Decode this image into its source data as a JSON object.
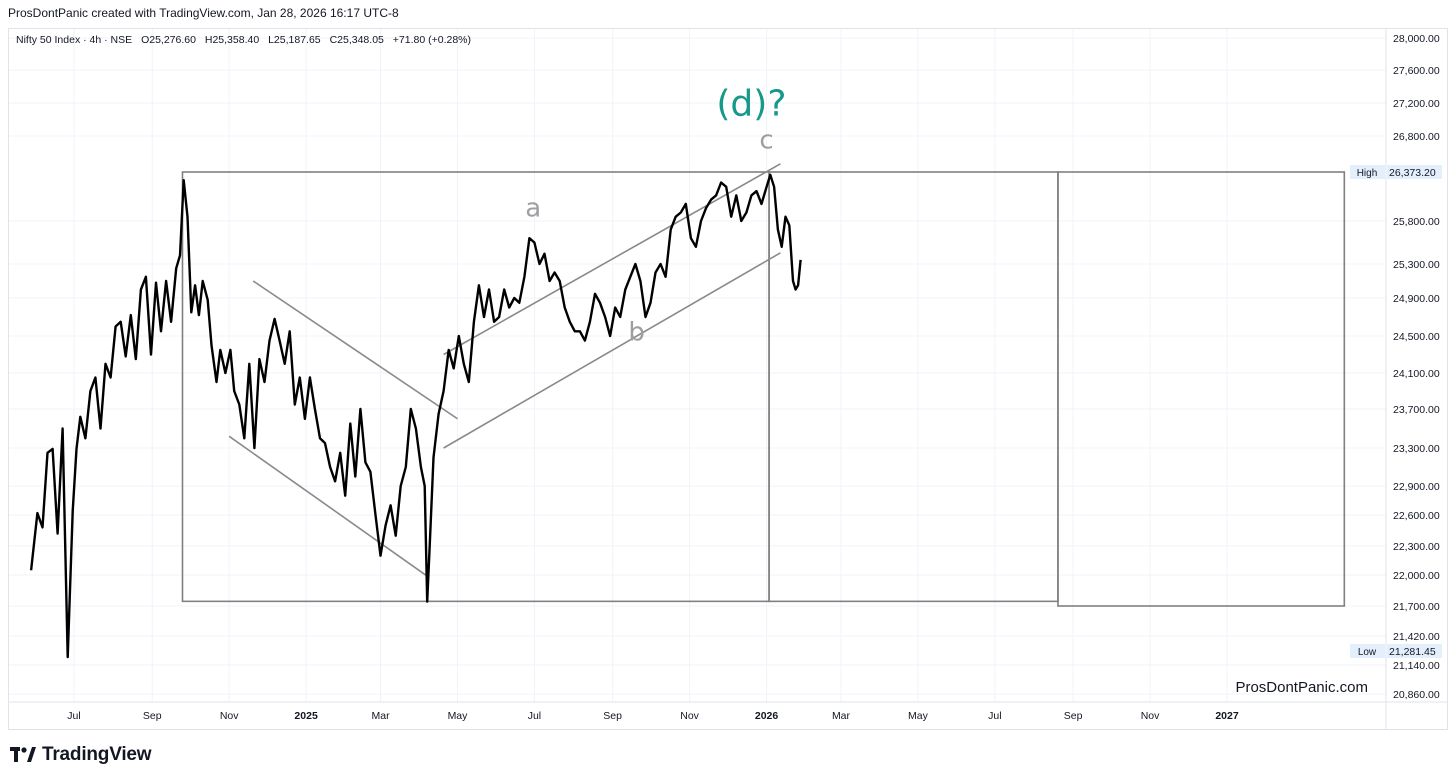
{
  "header": {
    "credit": "ProsDontPanic created with TradingView.com, Jan 28, 2026 16:17 UTC-8"
  },
  "legend": {
    "symbol": "Nifty 50 Index · 4h · NSE",
    "open": "O25,276.60",
    "high": "H25,358.40",
    "low": "L25,187.65",
    "close": "C25,348.05",
    "change": "+71.80 (+0.28%)"
  },
  "footer": {
    "brand": "TradingView",
    "watermark": "ProsDontPanic.com"
  },
  "colors": {
    "price": "#000000",
    "grid": "#f0f3fa",
    "box": "#808080",
    "annotation_teal": "#15998a",
    "wave_label": "#9e9e9e",
    "marker_bg": "#e3effd"
  },
  "chart_data": {
    "type": "line",
    "series": [
      {
        "values": [
          [
            "2024-05-28",
            22050
          ],
          [
            "2024-06-02",
            22620
          ],
          [
            "2024-06-06",
            22480
          ],
          [
            "2024-06-10",
            23250
          ],
          [
            "2024-06-14",
            23290
          ],
          [
            "2024-06-18",
            22420
          ],
          [
            "2024-06-22",
            23500
          ],
          [
            "2024-06-26",
            21220
          ],
          [
            "2024-06-30",
            22640
          ],
          [
            "2024-07-03",
            23290
          ],
          [
            "2024-07-06",
            23620
          ],
          [
            "2024-07-10",
            23400
          ],
          [
            "2024-07-14",
            23900
          ],
          [
            "2024-07-18",
            24050
          ],
          [
            "2024-07-22",
            23500
          ],
          [
            "2024-07-26",
            24200
          ],
          [
            "2024-07-30",
            24050
          ],
          [
            "2024-08-03",
            24600
          ],
          [
            "2024-08-07",
            24650
          ],
          [
            "2024-08-11",
            24280
          ],
          [
            "2024-08-15",
            24720
          ],
          [
            "2024-08-19",
            24250
          ],
          [
            "2024-08-23",
            25000
          ],
          [
            "2024-08-27",
            25150
          ],
          [
            "2024-08-31",
            24300
          ],
          [
            "2024-09-04",
            25080
          ],
          [
            "2024-09-08",
            24550
          ],
          [
            "2024-09-12",
            25100
          ],
          [
            "2024-09-16",
            24650
          ],
          [
            "2024-09-20",
            25250
          ],
          [
            "2024-09-23",
            25400
          ],
          [
            "2024-09-26",
            26277
          ],
          [
            "2024-09-29",
            25850
          ],
          [
            "2024-10-02",
            24750
          ],
          [
            "2024-10-05",
            25050
          ],
          [
            "2024-10-08",
            24720
          ],
          [
            "2024-10-11",
            25100
          ],
          [
            "2024-10-15",
            24880
          ],
          [
            "2024-10-18",
            24400
          ],
          [
            "2024-10-22",
            24000
          ],
          [
            "2024-10-25",
            24350
          ],
          [
            "2024-10-29",
            24100
          ],
          [
            "2024-11-02",
            24350
          ],
          [
            "2024-11-05",
            23900
          ],
          [
            "2024-11-09",
            23750
          ],
          [
            "2024-11-13",
            23400
          ],
          [
            "2024-11-17",
            24200
          ],
          [
            "2024-11-21",
            23300
          ],
          [
            "2024-11-25",
            24250
          ],
          [
            "2024-11-29",
            24000
          ],
          [
            "2024-12-03",
            24450
          ],
          [
            "2024-12-07",
            24680
          ],
          [
            "2024-12-11",
            24450
          ],
          [
            "2024-12-15",
            24200
          ],
          [
            "2024-12-19",
            24550
          ],
          [
            "2024-12-23",
            23750
          ],
          [
            "2024-12-27",
            24050
          ],
          [
            "2024-12-31",
            23600
          ],
          [
            "2025-01-04",
            24050
          ],
          [
            "2025-01-08",
            23700
          ],
          [
            "2025-01-12",
            23400
          ],
          [
            "2025-01-16",
            23350
          ],
          [
            "2025-01-20",
            23100
          ],
          [
            "2025-01-24",
            22950
          ],
          [
            "2025-01-28",
            23250
          ],
          [
            "2025-02-01",
            22800
          ],
          [
            "2025-02-05",
            23550
          ],
          [
            "2025-02-09",
            23000
          ],
          [
            "2025-02-13",
            23700
          ],
          [
            "2025-02-17",
            23150
          ],
          [
            "2025-02-21",
            23050
          ],
          [
            "2025-02-25",
            22600
          ],
          [
            "2025-03-01",
            22200
          ],
          [
            "2025-03-05",
            22500
          ],
          [
            "2025-03-09",
            22700
          ],
          [
            "2025-03-13",
            22400
          ],
          [
            "2025-03-17",
            22900
          ],
          [
            "2025-03-21",
            23100
          ],
          [
            "2025-03-25",
            23700
          ],
          [
            "2025-03-29",
            23500
          ],
          [
            "2025-04-02",
            23100
          ],
          [
            "2025-04-05",
            22900
          ],
          [
            "2025-04-07",
            21743
          ],
          [
            "2025-04-09",
            22300
          ],
          [
            "2025-04-12",
            23200
          ],
          [
            "2025-04-16",
            23650
          ],
          [
            "2025-04-20",
            23900
          ],
          [
            "2025-04-24",
            24350
          ],
          [
            "2025-04-28",
            24150
          ],
          [
            "2025-05-02",
            24500
          ],
          [
            "2025-05-06",
            24200
          ],
          [
            "2025-05-10",
            24000
          ],
          [
            "2025-05-14",
            24650
          ],
          [
            "2025-05-18",
            25050
          ],
          [
            "2025-05-22",
            24700
          ],
          [
            "2025-05-26",
            25000
          ],
          [
            "2025-05-30",
            24650
          ],
          [
            "2025-06-03",
            24700
          ],
          [
            "2025-06-07",
            25000
          ],
          [
            "2025-06-11",
            24800
          ],
          [
            "2025-06-15",
            24900
          ],
          [
            "2025-06-19",
            24850
          ],
          [
            "2025-06-23",
            25150
          ],
          [
            "2025-06-27",
            25600
          ],
          [
            "2025-07-01",
            25550
          ],
          [
            "2025-07-05",
            25300
          ],
          [
            "2025-07-09",
            25420
          ],
          [
            "2025-07-13",
            25100
          ],
          [
            "2025-07-17",
            25200
          ],
          [
            "2025-07-21",
            25100
          ],
          [
            "2025-07-25",
            24800
          ],
          [
            "2025-07-29",
            24650
          ],
          [
            "2025-08-02",
            24550
          ],
          [
            "2025-08-06",
            24550
          ],
          [
            "2025-08-10",
            24450
          ],
          [
            "2025-08-14",
            24650
          ],
          [
            "2025-08-18",
            24950
          ],
          [
            "2025-08-22",
            24850
          ],
          [
            "2025-08-26",
            24700
          ],
          [
            "2025-08-30",
            24500
          ],
          [
            "2025-09-03",
            24800
          ],
          [
            "2025-09-07",
            24700
          ],
          [
            "2025-09-11",
            25000
          ],
          [
            "2025-09-15",
            25150
          ],
          [
            "2025-09-19",
            25300
          ],
          [
            "2025-09-23",
            25100
          ],
          [
            "2025-09-27",
            24700
          ],
          [
            "2025-10-01",
            24850
          ],
          [
            "2025-10-05",
            25200
          ],
          [
            "2025-10-09",
            25300
          ],
          [
            "2025-10-13",
            25150
          ],
          [
            "2025-10-17",
            25700
          ],
          [
            "2025-10-21",
            25850
          ],
          [
            "2025-10-25",
            25900
          ],
          [
            "2025-10-29",
            26000
          ],
          [
            "2025-11-02",
            25600
          ],
          [
            "2025-11-06",
            25500
          ],
          [
            "2025-11-10",
            25800
          ],
          [
            "2025-11-14",
            25950
          ],
          [
            "2025-11-18",
            26050
          ],
          [
            "2025-11-22",
            26100
          ],
          [
            "2025-11-26",
            26250
          ],
          [
            "2025-11-30",
            26200
          ],
          [
            "2025-12-04",
            25850
          ],
          [
            "2025-12-08",
            26100
          ],
          [
            "2025-12-12",
            25800
          ],
          [
            "2025-12-16",
            25900
          ],
          [
            "2025-12-20",
            26100
          ],
          [
            "2025-12-24",
            26150
          ],
          [
            "2025-12-28",
            26000
          ],
          [
            "2026-01-01",
            26200
          ],
          [
            "2026-01-04",
            26340
          ],
          [
            "2026-01-07",
            26200
          ],
          [
            "2026-01-10",
            25700
          ],
          [
            "2026-01-13",
            25500
          ],
          [
            "2026-01-16",
            25850
          ],
          [
            "2026-01-19",
            25750
          ],
          [
            "2026-01-22",
            25100
          ],
          [
            "2026-01-24",
            25000
          ],
          [
            "2026-01-26",
            25050
          ],
          [
            "2026-01-28",
            25348
          ]
        ]
      }
    ],
    "y_axis": {
      "ticks": [
        "28,000.00",
        "27,600.00",
        "27,200.00",
        "26,800.00",
        "26,373.20",
        "25,800.00",
        "25,300.00",
        "24,900.00",
        "24,500.00",
        "24,100.00",
        "23,700.00",
        "23,300.00",
        "22,900.00",
        "22,600.00",
        "22,300.00",
        "22,000.00",
        "21,700.00",
        "21,420.00",
        "21,281.45",
        "21,140.00",
        "20,860.00"
      ],
      "tick_values": [
        28000,
        27600,
        27200,
        26800,
        26373.2,
        25800,
        25300,
        24900,
        24500,
        24100,
        23700,
        23300,
        22900,
        22600,
        22300,
        22000,
        21700,
        21420,
        21281.45,
        21140,
        20860
      ],
      "high_marker": {
        "label": "High",
        "value": "26,373.20"
      },
      "low_marker": {
        "label": "Low",
        "value": "21,281.45"
      }
    },
    "x_axis": {
      "ticks": [
        "Jul",
        "Sep",
        "Nov",
        "2025",
        "Mar",
        "May",
        "Jul",
        "Sep",
        "Nov",
        "2026",
        "Mar",
        "May",
        "Jul",
        "Sep",
        "Nov",
        "2027"
      ],
      "tick_dates": [
        "2024-07-01",
        "2024-09-01",
        "2024-11-01",
        "2025-01-01",
        "2025-03-01",
        "2025-05-01",
        "2025-07-01",
        "2025-09-01",
        "2025-11-01",
        "2026-01-01",
        "2026-03-01",
        "2026-05-01",
        "2026-07-01",
        "2026-09-01",
        "2026-11-01",
        "2027-01-01"
      ]
    },
    "annotations": {
      "wave_labels": [
        {
          "text": "a",
          "x": "2025-06-30",
          "y": 25850
        },
        {
          "text": "b",
          "x": "2025-09-20",
          "y": 24450
        },
        {
          "text": "c",
          "x": "2026-01-01",
          "y": 26650
        },
        {
          "text": "(d)?",
          "x": "2025-12-20",
          "y": 27050
        }
      ],
      "trendlines": [
        {
          "from": [
            "2024-11-20",
            25100
          ],
          "to": [
            "2025-05-01",
            23600
          ]
        },
        {
          "from": [
            "2024-11-01",
            23420
          ],
          "to": [
            "2025-04-08",
            21980
          ]
        },
        {
          "from": [
            "2025-04-20",
            24300
          ],
          "to": [
            "2026-01-12",
            26470
          ]
        },
        {
          "from": [
            "2025-04-20",
            23300
          ],
          "to": [
            "2026-01-12",
            25430
          ]
        }
      ],
      "rectangles": [
        {
          "from": [
            "2024-09-25",
            26373.2
          ],
          "to": [
            "2026-01-03",
            21745
          ]
        },
        {
          "from": [
            "2026-01-03",
            26373.2
          ],
          "to": [
            "2026-08-20",
            21745
          ]
        },
        {
          "from": [
            "2026-08-20",
            26373.2
          ],
          "to": [
            "2027-04-04",
            21700
          ]
        }
      ]
    }
  }
}
